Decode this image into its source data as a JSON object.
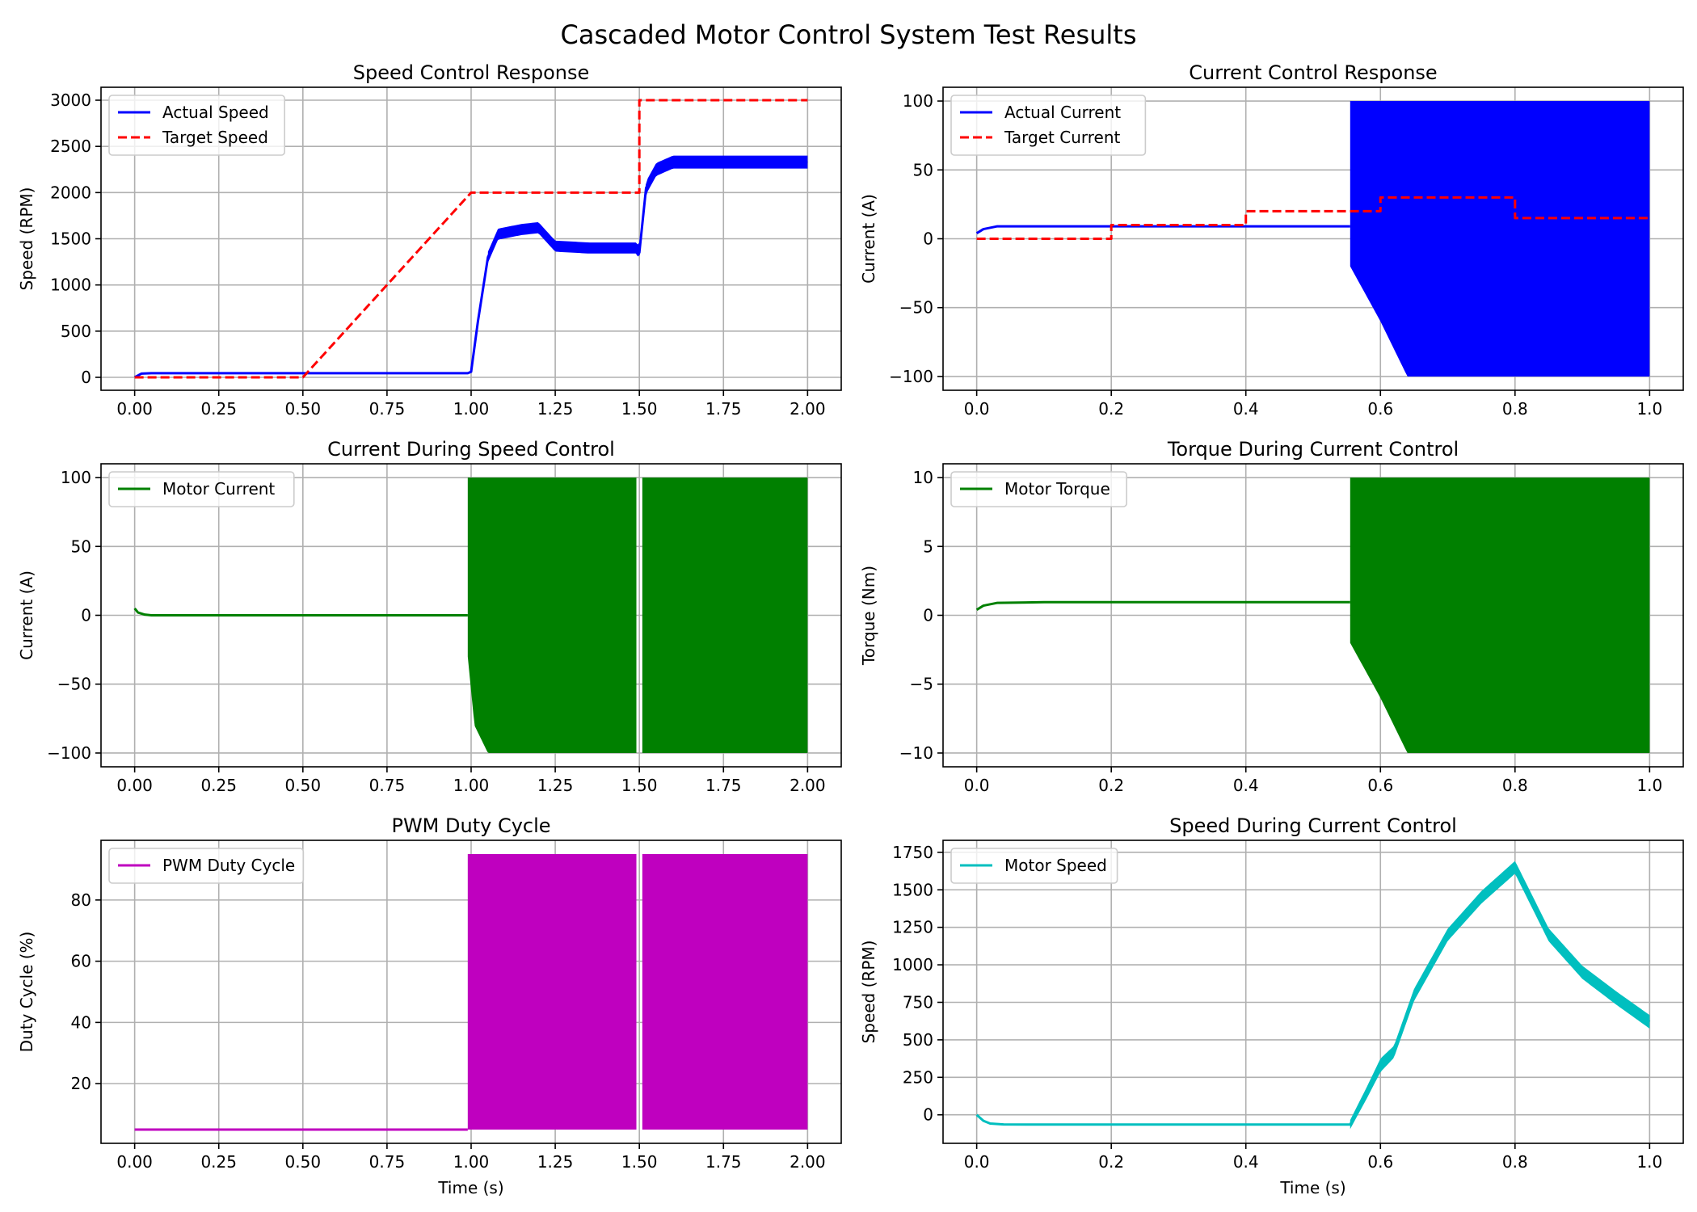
{
  "figure_title": "Cascaded Motor Control System Test Results",
  "chart_data": [
    {
      "id": "speed_control",
      "type": "line",
      "title": "Speed Control Response",
      "xlabel": "",
      "ylabel": "Speed (RPM)",
      "xlim": [
        -0.1,
        2.1
      ],
      "ylim": [
        -140,
        3140
      ],
      "xticks": [
        0,
        0.25,
        0.5,
        0.75,
        1.0,
        1.25,
        1.5,
        1.75,
        2.0
      ],
      "xticklabels": [
        "0.00",
        "0.25",
        "0.50",
        "0.75",
        "1.00",
        "1.25",
        "1.50",
        "1.75",
        "2.00"
      ],
      "yticks": [
        0,
        500,
        1000,
        1500,
        2000,
        2500,
        3000
      ],
      "yticklabels": [
        "0",
        "500",
        "1000",
        "1500",
        "2000",
        "2500",
        "3000"
      ],
      "grid": true,
      "legend_position": "upper-left",
      "series": [
        {
          "name": "Actual Speed",
          "color": "#0000ff",
          "style": "solid",
          "x": [
            0,
            0.02,
            0.05,
            0.5,
            0.99,
            1.0,
            1.02,
            1.05,
            1.08,
            1.15,
            1.2,
            1.25,
            1.35,
            1.49,
            1.5,
            1.52,
            1.55,
            1.6,
            1.8,
            2.0
          ],
          "y": [
            0,
            40,
            45,
            45,
            45,
            60,
            600,
            1300,
            1550,
            1600,
            1620,
            1420,
            1400,
            1400,
            1350,
            2050,
            2250,
            2330,
            2330,
            2330
          ],
          "band": {
            "x": [
              1.05,
              1.49,
              1.5,
              2.0
            ],
            "half_width": [
              60,
              60,
              70,
              70
            ]
          }
        },
        {
          "name": "Target Speed",
          "color": "#ff0000",
          "style": "dashed",
          "x": [
            0,
            0.5,
            1.0,
            1.5,
            1.5,
            2.0
          ],
          "y": [
            0,
            0,
            2000,
            2000,
            3000,
            3000
          ]
        }
      ]
    },
    {
      "id": "current_control",
      "type": "line",
      "title": "Current Control Response",
      "xlabel": "",
      "ylabel": "Current (A)",
      "xlim": [
        -0.05,
        1.05
      ],
      "ylim": [
        -110,
        110
      ],
      "xticks": [
        0,
        0.2,
        0.4,
        0.6,
        0.8,
        1.0
      ],
      "xticklabels": [
        "0.0",
        "0.2",
        "0.4",
        "0.6",
        "0.8",
        "1.0"
      ],
      "yticks": [
        -100,
        -50,
        0,
        50,
        100
      ],
      "yticklabels": [
        "−100",
        "−50",
        "0",
        "50",
        "100"
      ],
      "grid": true,
      "legend_position": "upper-left",
      "series": [
        {
          "name": "Actual Current",
          "color": "#0000ff",
          "style": "solid",
          "x": [
            0,
            0.01,
            0.03,
            0.1,
            0.555
          ],
          "y": [
            4,
            7,
            9,
            9,
            9
          ],
          "oscillation": {
            "x_start": 0.555,
            "x_end": 1.0,
            "upper": 100,
            "lower_envelope_x": [
              0.555,
              0.6,
              0.64,
              1.0
            ],
            "lower_envelope_y": [
              -20,
              -60,
              -100,
              -100
            ]
          }
        },
        {
          "name": "Target Current",
          "color": "#ff0000",
          "style": "dashed",
          "x": [
            0,
            0.2,
            0.2,
            0.4,
            0.4,
            0.6,
            0.6,
            0.8,
            0.8,
            1.0
          ],
          "y": [
            0,
            0,
            10,
            10,
            20,
            20,
            30,
            30,
            15,
            15
          ]
        }
      ]
    },
    {
      "id": "current_speed_control",
      "type": "line",
      "title": "Current During Speed Control",
      "xlabel": "",
      "ylabel": "Current (A)",
      "xlim": [
        -0.1,
        2.1
      ],
      "ylim": [
        -110,
        110
      ],
      "xticks": [
        0,
        0.25,
        0.5,
        0.75,
        1.0,
        1.25,
        1.5,
        1.75,
        2.0
      ],
      "xticklabels": [
        "0.00",
        "0.25",
        "0.50",
        "0.75",
        "1.00",
        "1.25",
        "1.50",
        "1.75",
        "2.00"
      ],
      "yticks": [
        -100,
        -50,
        0,
        50,
        100
      ],
      "yticklabels": [
        "−100",
        "−50",
        "0",
        "50",
        "100"
      ],
      "grid": true,
      "legend_position": "upper-left",
      "series": [
        {
          "name": "Motor Current",
          "color": "#008000",
          "style": "solid",
          "x": [
            0,
            0.01,
            0.03,
            0.05,
            0.99
          ],
          "y": [
            5,
            2,
            0.5,
            0,
            0
          ],
          "oscillation": {
            "x_start": 0.99,
            "x_end": 2.0,
            "upper": 100,
            "lower_envelope_x": [
              0.99,
              1.01,
              1.05,
              2.0
            ],
            "lower_envelope_y": [
              -30,
              -80,
              -100,
              -100
            ],
            "gap_x": 1.5
          }
        }
      ]
    },
    {
      "id": "torque_current_control",
      "type": "line",
      "title": "Torque During Current Control",
      "xlabel": "",
      "ylabel": "Torque (Nm)",
      "xlim": [
        -0.05,
        1.05
      ],
      "ylim": [
        -11,
        11
      ],
      "xticks": [
        0,
        0.2,
        0.4,
        0.6,
        0.8,
        1.0
      ],
      "xticklabels": [
        "0.0",
        "0.2",
        "0.4",
        "0.6",
        "0.8",
        "1.0"
      ],
      "yticks": [
        -10,
        -5,
        0,
        5,
        10
      ],
      "yticklabels": [
        "−10",
        "−5",
        "0",
        "5",
        "10"
      ],
      "grid": true,
      "legend_position": "upper-left",
      "series": [
        {
          "name": "Motor Torque",
          "color": "#008000",
          "style": "solid",
          "x": [
            0,
            0.01,
            0.03,
            0.1,
            0.555
          ],
          "y": [
            0.4,
            0.7,
            0.9,
            0.95,
            0.95
          ],
          "oscillation": {
            "x_start": 0.555,
            "x_end": 1.0,
            "upper": 10,
            "lower_envelope_x": [
              0.555,
              0.6,
              0.64,
              1.0
            ],
            "lower_envelope_y": [
              -2,
              -6,
              -10,
              -10
            ]
          }
        }
      ]
    },
    {
      "id": "pwm_duty",
      "type": "line",
      "title": "PWM Duty Cycle",
      "xlabel": "Time (s)",
      "ylabel": "Duty Cycle (%)",
      "xlim": [
        -0.1,
        2.1
      ],
      "ylim": [
        0.5,
        99.5
      ],
      "xticks": [
        0,
        0.25,
        0.5,
        0.75,
        1.0,
        1.25,
        1.5,
        1.75,
        2.0
      ],
      "xticklabels": [
        "0.00",
        "0.25",
        "0.50",
        "0.75",
        "1.00",
        "1.25",
        "1.50",
        "1.75",
        "2.00"
      ],
      "yticks": [
        20,
        40,
        60,
        80
      ],
      "yticklabels": [
        "20",
        "40",
        "60",
        "80"
      ],
      "grid": true,
      "legend_position": "upper-left",
      "series": [
        {
          "name": "PWM Duty Cycle",
          "color": "#bf00bf",
          "style": "solid",
          "x": [
            0,
            0.99
          ],
          "y": [
            5,
            5
          ],
          "oscillation": {
            "x_start": 0.99,
            "x_end": 2.0,
            "upper": 95,
            "lower_envelope_x": [
              0.99,
              2.0
            ],
            "lower_envelope_y": [
              5,
              5
            ],
            "gap_x": 1.5
          }
        }
      ]
    },
    {
      "id": "speed_current_control",
      "type": "line",
      "title": "Speed During Current Control",
      "xlabel": "Time (s)",
      "ylabel": "Speed (RPM)",
      "xlim": [
        -0.05,
        1.05
      ],
      "ylim": [
        -190,
        1830
      ],
      "xticks": [
        0,
        0.2,
        0.4,
        0.6,
        0.8,
        1.0
      ],
      "xticklabels": [
        "0.0",
        "0.2",
        "0.4",
        "0.6",
        "0.8",
        "1.0"
      ],
      "yticks": [
        0,
        250,
        500,
        750,
        1000,
        1250,
        1500,
        1750
      ],
      "yticklabels": [
        "0",
        "250",
        "500",
        "750",
        "1000",
        "1250",
        "1500",
        "1750"
      ],
      "grid": true,
      "legend_position": "upper-left",
      "series": [
        {
          "name": "Motor Speed",
          "color": "#00bfbf",
          "style": "solid",
          "x": [
            0,
            0.01,
            0.02,
            0.04,
            0.1,
            0.3,
            0.555,
            0.58,
            0.6,
            0.62,
            0.65,
            0.7,
            0.75,
            0.8,
            0.85,
            0.9,
            0.95,
            1.0
          ],
          "y": [
            0,
            -40,
            -58,
            -64,
            -65,
            -65,
            -65,
            150,
            330,
            420,
            800,
            1200,
            1450,
            1650,
            1200,
            950,
            780,
            620
          ],
          "band": {
            "x": [
              0.555,
              0.6,
              0.62,
              1.0
            ],
            "half_width": [
              30,
              45,
              40,
              45
            ]
          }
        }
      ]
    }
  ]
}
